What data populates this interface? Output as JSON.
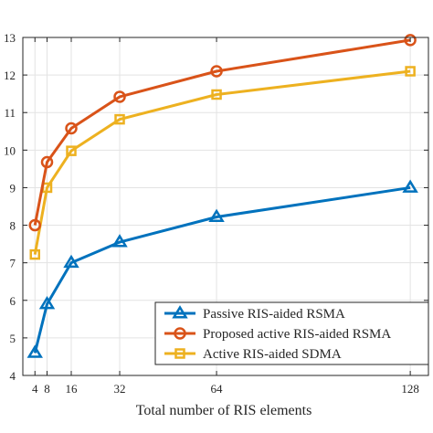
{
  "chart_data": {
    "type": "line",
    "xlabel": "Total number of RIS elements",
    "ylabel": "",
    "title": "",
    "xlim": [
      0,
      134
    ],
    "ylim": [
      4,
      13
    ],
    "xticks": [
      4,
      8,
      16,
      32,
      64,
      128
    ],
    "yticks": [
      4,
      5,
      6,
      7,
      8,
      9,
      10,
      11,
      12,
      13
    ],
    "grid": true,
    "legend_position": "bottom-right",
    "x": [
      4,
      8,
      16,
      32,
      64,
      128
    ],
    "series": [
      {
        "name": "Passive RIS-aided RSMA",
        "values": [
          4.6,
          5.9,
          7.0,
          7.55,
          8.22,
          9.0
        ],
        "color": "#0072BD",
        "marker": "triangle"
      },
      {
        "name": "Proposed active RIS-aided RSMA",
        "values": [
          8.0,
          9.68,
          10.58,
          11.42,
          12.1,
          12.93
        ],
        "color": "#D95319",
        "marker": "circle"
      },
      {
        "name": "Active RIS-aided SDMA",
        "values": [
          7.22,
          9.0,
          9.98,
          10.82,
          11.48,
          12.1
        ],
        "color": "#EDB120",
        "marker": "square"
      }
    ]
  }
}
